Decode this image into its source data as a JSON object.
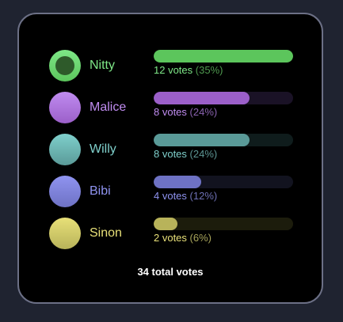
{
  "poll": {
    "options": [
      {
        "name": "Nitty",
        "votes_text": "12 votes",
        "percent_text": "(35%)",
        "percent": 35,
        "selected": true,
        "color": "#7ee787",
        "radio_bg": "#7ee787",
        "fill": "#5cc55c",
        "track": "#1a3a1a",
        "pct_color": "#4f9a4f"
      },
      {
        "name": "Malice",
        "votes_text": "8 votes",
        "percent_text": "(24%)",
        "percent": 24,
        "selected": false,
        "color": "#c08cf0",
        "radio_bg": "#c08cf0",
        "fill": "#9b5fc9",
        "track": "#1a1226",
        "pct_color": "#8a62b0"
      },
      {
        "name": "Willy",
        "votes_text": "8 votes",
        "percent_text": "(24%)",
        "percent": 24,
        "selected": false,
        "color": "#7fd0cc",
        "radio_bg": "#7fd0cc",
        "fill": "#5a9a98",
        "track": "#0f1c1c",
        "pct_color": "#5c9593"
      },
      {
        "name": "Bibi",
        "votes_text": "4 votes",
        "percent_text": "(12%)",
        "percent": 12,
        "selected": false,
        "color": "#8f93f0",
        "radio_bg": "#8f93f0",
        "fill": "#6e72c4",
        "track": "#12131f",
        "pct_color": "#6d70b4"
      },
      {
        "name": "Sinon",
        "votes_text": "2 votes",
        "percent_text": "(6%)",
        "percent": 6,
        "selected": false,
        "color": "#e8e078",
        "radio_bg": "#e8e078",
        "fill": "#b8b35a",
        "track": "#1c1c0c",
        "pct_color": "#a8a45a"
      }
    ],
    "total": "34 total votes"
  }
}
